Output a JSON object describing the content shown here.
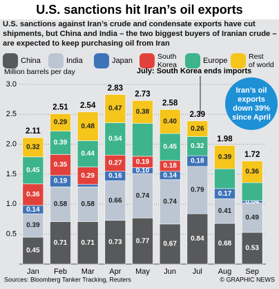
{
  "chart_data": {
    "type": "bar",
    "stacked": true,
    "title": "U.S. sanctions hit Iran’s oil exports",
    "subtitle": "U.S. sanctions against Iran’s crude and condensate exports have cut shipments, but China and India – the two biggest buyers of Iranian crude – are expected to keep purchasing oil from Iran",
    "y_label": "Million barrels per day",
    "annotations": [
      "July: South Korea ends imports",
      "Iran’s oil exports down 39% since April"
    ],
    "source": "Sources: Bloomberg Tanker Tracking, Reuters",
    "credit": "© GRAPHIC NEWS",
    "categories": [
      "Jan",
      "Feb",
      "Mar",
      "Apr",
      "May",
      "Jun",
      "Jul",
      "Aug",
      "Sep"
    ],
    "totals": [
      2.11,
      2.51,
      2.54,
      2.83,
      2.73,
      2.58,
      2.39,
      1.98,
      1.72
    ],
    "series": [
      {
        "name": "China",
        "color": "#58595b",
        "text_color": "#ffffff",
        "values": [
          0.45,
          0.71,
          0.71,
          0.73,
          0.77,
          0.67,
          0.84,
          0.68,
          0.53
        ],
        "value_labels": [
          "0.45",
          "0.71",
          "0.71",
          "0.73",
          "0.77",
          "0.67",
          "0.84",
          "0.68",
          "0.53"
        ]
      },
      {
        "name": "India",
        "color": "#bcc6d3",
        "text_color": "#222222",
        "values": [
          0.39,
          0.58,
          0.58,
          0.66,
          0.74,
          0.74,
          0.79,
          0.41,
          0.49
        ],
        "value_labels": [
          "0.39",
          "0.58",
          "0.58",
          "0.66",
          "0.74",
          "0.74",
          "0.79",
          "0.41",
          "0.49"
        ]
      },
      {
        "name": "Japan",
        "color": "#3f73b8",
        "text_color": "#ffffff",
        "values": [
          0.14,
          0.19,
          0.04,
          0.16,
          0.1,
          0.14,
          0.18,
          0.17,
          0.04
        ],
        "value_labels": [
          "0.14",
          "0.19",
          null,
          "0.16",
          "0.10",
          "0.14",
          "0.18",
          "0.17",
          "0.04"
        ]
      },
      {
        "name": "South Korea",
        "color": "#e2413b",
        "text_color": "#ffffff",
        "values": [
          0.36,
          0.35,
          0.29,
          0.27,
          0.19,
          0.18,
          null,
          null,
          null
        ],
        "value_labels": [
          "0.36",
          "0.35",
          "0.29",
          "0.27",
          "0.19",
          "0.18",
          null,
          null,
          null
        ]
      },
      {
        "name": "Europe",
        "color": "#3db48c",
        "text_color": "#ffffff",
        "values": [
          0.45,
          0.39,
          0.44,
          0.54,
          0.55,
          0.45,
          0.32,
          0.33,
          0.3
        ],
        "value_labels": [
          "0.45",
          "0.39",
          "0.44",
          "0.54",
          null,
          "0.45",
          "0.32",
          null,
          null
        ]
      },
      {
        "name": "Rest of world",
        "color": "#f5c51c",
        "text_color": "#222222",
        "values": [
          0.32,
          0.29,
          0.48,
          0.47,
          0.38,
          0.4,
          0.26,
          0.39,
          0.36
        ],
        "value_labels": [
          "0.32",
          "0.29",
          "0.48",
          "0.47",
          "0.38",
          "0.40",
          "0.26",
          "0.39",
          "0.36"
        ]
      }
    ],
    "ylim": [
      0,
      3
    ],
    "yticks": [
      0.5,
      {
        "value": 1.0,
        "label": "1.0"
      },
      1.5,
      {
        "value": 2.0,
        "label": "2.0"
      },
      2.5,
      {
        "value": 3.0,
        "label": "3.0"
      }
    ],
    "grid": true
  }
}
